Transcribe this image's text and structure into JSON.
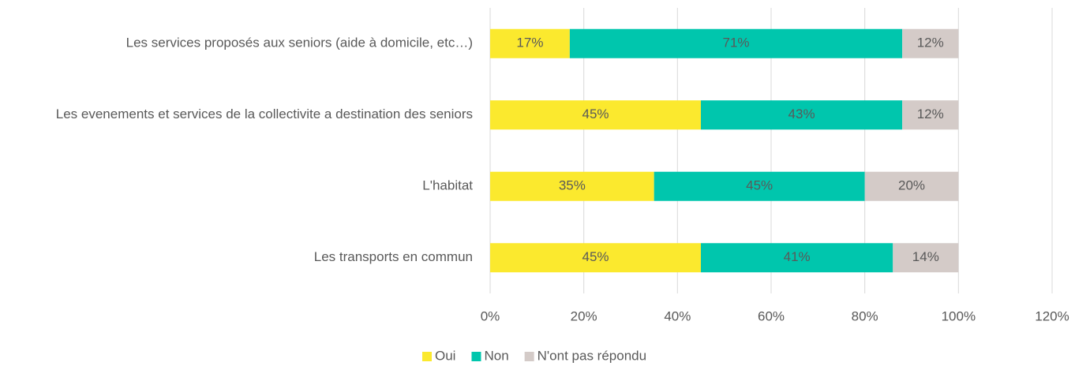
{
  "chart_data": {
    "type": "stacked_barh",
    "categories": [
      "Les services proposés aux seniors (aide à domicile, etc…)",
      "Les evenements et services de la collectivite a destination des seniors",
      "L'habitat",
      "Les transports en commun"
    ],
    "series": [
      {
        "name": "Oui",
        "color": "#fbe92e",
        "values": [
          17,
          45,
          35,
          45
        ],
        "value_labels": [
          "17%",
          "45%",
          "35%",
          "45%"
        ]
      },
      {
        "name": "Non",
        "color": "#00c6ad",
        "values": [
          71,
          43,
          45,
          41
        ],
        "value_labels": [
          "71%",
          "43%",
          "45%",
          "41%"
        ]
      },
      {
        "name": "N'ont pas répondu",
        "color": "#d4cbc8",
        "values": [
          12,
          12,
          20,
          14
        ],
        "value_labels": [
          "12%",
          "12%",
          "20%",
          "14%"
        ]
      }
    ],
    "xlim": [
      0,
      120
    ],
    "xticks": [
      {
        "value": 0,
        "label": "0%"
      },
      {
        "value": 20,
        "label": "20%"
      },
      {
        "value": 40,
        "label": "40%"
      },
      {
        "value": 60,
        "label": "60%"
      },
      {
        "value": 80,
        "label": "80%"
      },
      {
        "value": 100,
        "label": "100%"
      },
      {
        "value": 120,
        "label": "120%"
      }
    ],
    "grid": true,
    "legend": "bottom"
  }
}
